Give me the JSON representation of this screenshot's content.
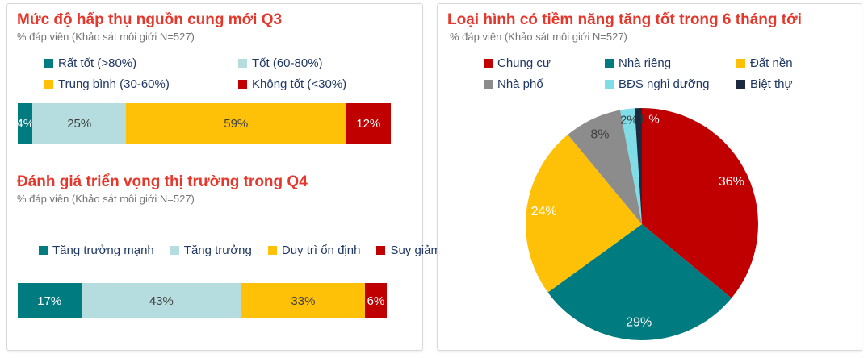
{
  "survey_note": "% đáp viên (Khảo sát môi giới N=527)",
  "chart_data": [
    {
      "type": "bar",
      "stacked": true,
      "orientation": "horizontal",
      "title": "Mức độ hấp thụ nguồn cung mới Q3",
      "subtitle": "% đáp viên (Khảo sát môi giới N=527)",
      "unit": "%",
      "xlim": [
        0,
        100
      ],
      "legend_position": "top",
      "legend_columns": 2,
      "series": [
        {
          "name": "Rất tốt (>80%)",
          "value": 4,
          "label": "4%",
          "color": "#007B80",
          "label_color": "#FFFFFF"
        },
        {
          "name": "Tốt (60-80%)",
          "value": 25,
          "label": "25%",
          "color": "#B5DCDE",
          "label_color": "#404040"
        },
        {
          "name": "Trung bình (30-60%)",
          "value": 59,
          "label": "59%",
          "color": "#FFC107",
          "label_color": "#404040"
        },
        {
          "name": "Không tốt (<30%)",
          "value": 12,
          "label": "12%",
          "color": "#C00000",
          "label_color": "#FFFFFF"
        }
      ]
    },
    {
      "type": "bar",
      "stacked": true,
      "orientation": "horizontal",
      "title": "Đánh giá triển vọng thị trường trong Q4",
      "subtitle": "% đáp viên (Khảo sát môi giới N=527)",
      "unit": "%",
      "xlim": [
        0,
        100
      ],
      "legend_position": "top",
      "legend_columns": 4,
      "series": [
        {
          "name": "Tăng trưởng mạnh",
          "value": 17,
          "label": "17%",
          "color": "#007B80",
          "label_color": "#FFFFFF"
        },
        {
          "name": "Tăng trưởng",
          "value": 43,
          "label": "43%",
          "color": "#B5DCDE",
          "label_color": "#404040"
        },
        {
          "name": "Duy trì ổn định",
          "value": 33,
          "label": "33%",
          "color": "#FFC107",
          "label_color": "#404040"
        },
        {
          "name": "Suy giảm",
          "value": 6,
          "label": "6%",
          "color": "#C00000",
          "label_color": "#FFFFFF"
        }
      ]
    },
    {
      "type": "pie",
      "title": "Loại hình có tiềm năng tăng tốt trong 6 tháng tới",
      "subtitle": "% đáp viên (Khảo sát môi giới N=527)",
      "unit": "%",
      "start_angle_deg": 0,
      "direction": "clockwise",
      "legend_position": "top",
      "legend_columns": 3,
      "slices": [
        {
          "name": "Chung cư",
          "value": 36,
          "label": "36%",
          "color": "#C00000",
          "label_color": "#FFFFFF"
        },
        {
          "name": "Nhà riêng",
          "value": 29,
          "label": "29%",
          "color": "#007B80",
          "label_color": "#FFFFFF"
        },
        {
          "name": "Đất nền",
          "value": 24,
          "label": "24%",
          "color": "#FFC107",
          "label_color": "#FFFFFF"
        },
        {
          "name": "Nhà phố",
          "value": 8,
          "label": "8%",
          "color": "#8C8C8C",
          "label_color": "#404040"
        },
        {
          "name": "BĐS nghỉ dưỡng",
          "value": 2,
          "label": "2%",
          "color": "#7FDDE8",
          "label_color": "#404040"
        },
        {
          "name": "Biệt thự",
          "value": 1,
          "label": "1 %",
          "color": "#1B2A3E",
          "label_parts": [
            {
              "text": "1",
              "color": "#333333"
            },
            {
              "text": " %",
              "color": "#FFFFFF"
            }
          ]
        }
      ]
    }
  ],
  "colors": {
    "title_red": "#E5372B",
    "subtitle_gray": "#757575",
    "legend_text_navy": "#1F3864",
    "card_border": "#D9D9D9"
  }
}
